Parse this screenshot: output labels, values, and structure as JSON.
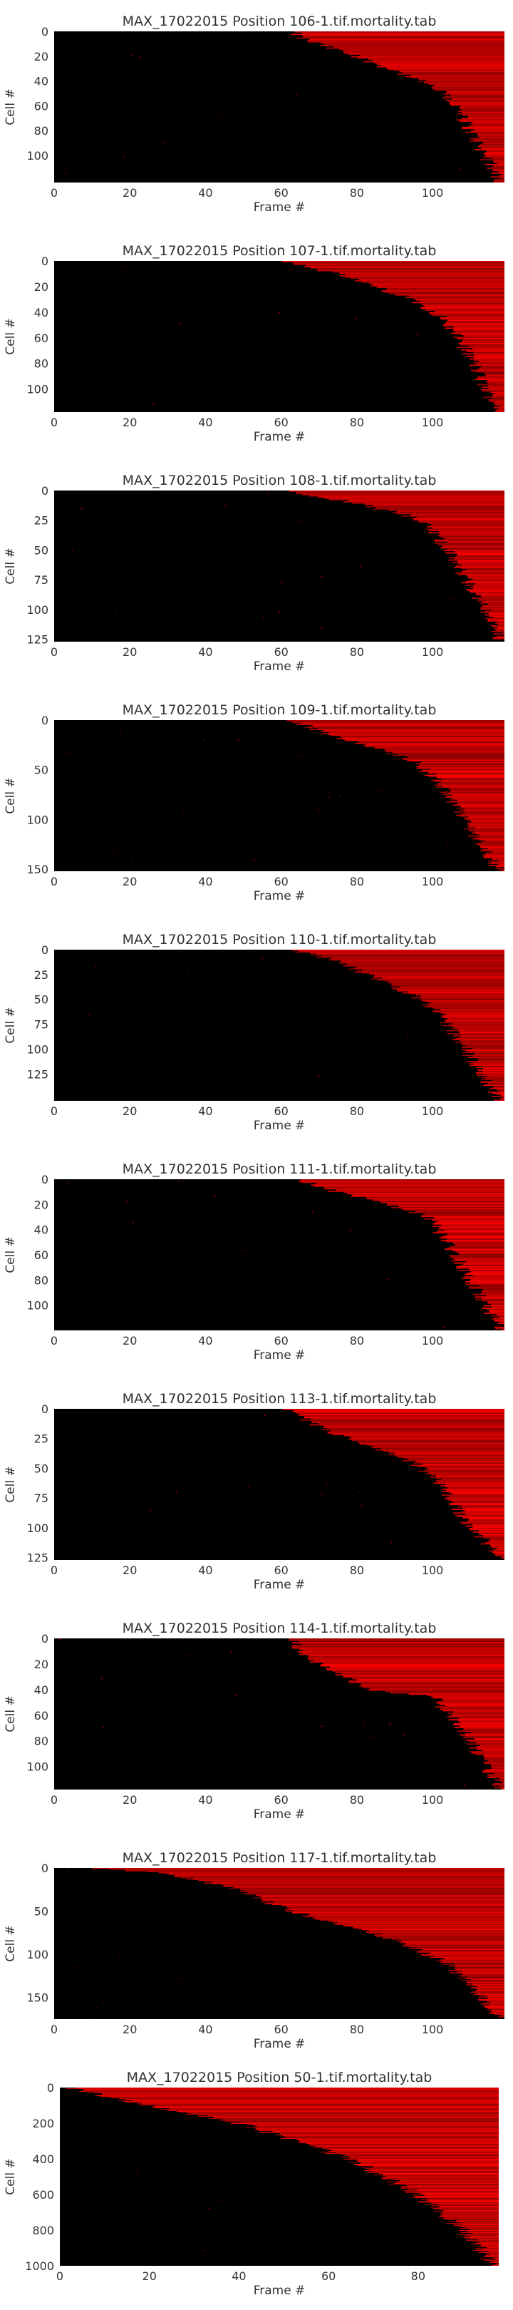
{
  "figure": {
    "background": "#ffffff",
    "plot_background": "#000000",
    "mark_color": "#ff0000",
    "text_color": "#333333"
  },
  "chart_data": [
    {
      "type": "heatmap",
      "title": "MAX_17022015 Position 106-1.tif.mortality.tab",
      "xlabel": "Frame #",
      "ylabel": "Cell #",
      "xlim": [
        0,
        119
      ],
      "ylim": [
        0,
        122
      ],
      "xticks": [
        0,
        20,
        40,
        60,
        80,
        100
      ],
      "yticks": [
        0,
        20,
        40,
        60,
        80,
        100
      ],
      "grid": false,
      "legend": "none",
      "death_profile": [
        {
          "cell": 0,
          "frame": 63
        },
        {
          "cell": 5,
          "frame": 65
        },
        {
          "cell": 10,
          "frame": 70
        },
        {
          "cell": 20,
          "frame": 80
        },
        {
          "cell": 30,
          "frame": 89
        },
        {
          "cell": 40,
          "frame": 97
        },
        {
          "cell": 50,
          "frame": 103
        },
        {
          "cell": 60,
          "frame": 106
        },
        {
          "cell": 80,
          "frame": 110
        },
        {
          "cell": 100,
          "frame": 114
        },
        {
          "cell": 122,
          "frame": 118
        }
      ]
    },
    {
      "type": "heatmap",
      "title": "MAX_17022015 Position 107-1.tif.mortality.tab",
      "xlabel": "Frame #",
      "ylabel": "Cell #",
      "xlim": [
        0,
        119
      ],
      "ylim": [
        0,
        118
      ],
      "xticks": [
        0,
        20,
        40,
        60,
        80,
        100
      ],
      "yticks": [
        0,
        20,
        40,
        60,
        80,
        100
      ],
      "grid": false,
      "legend": "none",
      "death_profile": [
        {
          "cell": 0,
          "frame": 62
        },
        {
          "cell": 10,
          "frame": 75
        },
        {
          "cell": 20,
          "frame": 85
        },
        {
          "cell": 30,
          "frame": 95
        },
        {
          "cell": 40,
          "frame": 101
        },
        {
          "cell": 60,
          "frame": 107
        },
        {
          "cell": 80,
          "frame": 111
        },
        {
          "cell": 100,
          "frame": 114
        },
        {
          "cell": 118,
          "frame": 118
        }
      ]
    },
    {
      "type": "heatmap",
      "title": "MAX_17022015 Position 108-1.tif.mortality.tab",
      "xlabel": "Frame #",
      "ylabel": "Cell #",
      "xlim": [
        0,
        119
      ],
      "ylim": [
        0,
        127
      ],
      "xticks": [
        0,
        20,
        40,
        60,
        80,
        100
      ],
      "yticks": [
        0,
        25,
        50,
        75,
        100,
        125
      ],
      "grid": false,
      "legend": "none",
      "death_profile": [
        {
          "cell": 0,
          "frame": 62
        },
        {
          "cell": 10,
          "frame": 80
        },
        {
          "cell": 20,
          "frame": 93
        },
        {
          "cell": 30,
          "frame": 99
        },
        {
          "cell": 50,
          "frame": 104
        },
        {
          "cell": 75,
          "frame": 109
        },
        {
          "cell": 100,
          "frame": 114
        },
        {
          "cell": 127,
          "frame": 118
        }
      ]
    },
    {
      "type": "heatmap",
      "title": "MAX_17022015 Position 109-1.tif.mortality.tab",
      "xlabel": "Frame #",
      "ylabel": "Cell #",
      "xlim": [
        0,
        119
      ],
      "ylim": [
        0,
        152
      ],
      "xticks": [
        0,
        20,
        40,
        60,
        80,
        100
      ],
      "yticks": [
        0,
        50,
        100,
        150
      ],
      "grid": false,
      "legend": "none",
      "death_profile": [
        {
          "cell": 0,
          "frame": 63
        },
        {
          "cell": 10,
          "frame": 70
        },
        {
          "cell": 25,
          "frame": 82
        },
        {
          "cell": 40,
          "frame": 95
        },
        {
          "cell": 60,
          "frame": 101
        },
        {
          "cell": 90,
          "frame": 107
        },
        {
          "cell": 120,
          "frame": 112
        },
        {
          "cell": 152,
          "frame": 118
        }
      ]
    },
    {
      "type": "heatmap",
      "title": "MAX_17022015 Position 110-1.tif.mortality.tab",
      "xlabel": "Frame #",
      "ylabel": "Cell #",
      "xlim": [
        0,
        119
      ],
      "ylim": [
        0,
        152
      ],
      "xticks": [
        0,
        20,
        40,
        60,
        80,
        100
      ],
      "yticks": [
        0,
        25,
        50,
        75,
        100,
        125
      ],
      "grid": false,
      "legend": "none",
      "death_profile": [
        {
          "cell": 0,
          "frame": 63
        },
        {
          "cell": 10,
          "frame": 74
        },
        {
          "cell": 25,
          "frame": 83
        },
        {
          "cell": 45,
          "frame": 95
        },
        {
          "cell": 60,
          "frame": 101
        },
        {
          "cell": 90,
          "frame": 107
        },
        {
          "cell": 120,
          "frame": 112
        },
        {
          "cell": 152,
          "frame": 118
        }
      ]
    },
    {
      "type": "heatmap",
      "title": "MAX_17022015 Position 111-1.tif.mortality.tab",
      "xlabel": "Frame #",
      "ylabel": "Cell #",
      "xlim": [
        0,
        119
      ],
      "ylim": [
        0,
        120
      ],
      "xticks": [
        0,
        20,
        40,
        60,
        80,
        100
      ],
      "yticks": [
        0,
        20,
        40,
        60,
        80,
        100
      ],
      "grid": false,
      "legend": "none",
      "death_profile": [
        {
          "cell": 0,
          "frame": 64
        },
        {
          "cell": 10,
          "frame": 75
        },
        {
          "cell": 20,
          "frame": 89
        },
        {
          "cell": 30,
          "frame": 99
        },
        {
          "cell": 50,
          "frame": 104
        },
        {
          "cell": 80,
          "frame": 110
        },
        {
          "cell": 120,
          "frame": 118
        }
      ]
    },
    {
      "type": "heatmap",
      "title": "MAX_17022015 Position 113-1.tif.mortality.tab",
      "xlabel": "Frame #",
      "ylabel": "Cell #",
      "xlim": [
        0,
        119
      ],
      "ylim": [
        0,
        127
      ],
      "xticks": [
        0,
        20,
        40,
        60,
        80,
        100
      ],
      "yticks": [
        0,
        25,
        50,
        75,
        100,
        125
      ],
      "grid": false,
      "legend": "none",
      "death_profile": [
        {
          "cell": 0,
          "frame": 61
        },
        {
          "cell": 15,
          "frame": 70
        },
        {
          "cell": 30,
          "frame": 82
        },
        {
          "cell": 45,
          "frame": 95
        },
        {
          "cell": 60,
          "frame": 101
        },
        {
          "cell": 90,
          "frame": 108
        },
        {
          "cell": 127,
          "frame": 118
        }
      ]
    },
    {
      "type": "heatmap",
      "title": "MAX_17022015 Position 114-1.tif.mortality.tab",
      "xlabel": "Frame #",
      "ylabel": "Cell #",
      "xlim": [
        0,
        119
      ],
      "ylim": [
        0,
        118
      ],
      "xticks": [
        0,
        20,
        40,
        60,
        80,
        100
      ],
      "yticks": [
        0,
        20,
        40,
        60,
        80,
        100
      ],
      "grid": false,
      "legend": "none",
      "death_profile": [
        {
          "cell": 0,
          "frame": 62
        },
        {
          "cell": 20,
          "frame": 70
        },
        {
          "cell": 40,
          "frame": 84
        },
        {
          "cell": 45,
          "frame": 100
        },
        {
          "cell": 70,
          "frame": 108
        },
        {
          "cell": 100,
          "frame": 114
        },
        {
          "cell": 118,
          "frame": 118
        }
      ]
    },
    {
      "type": "heatmap",
      "title": "MAX_17022015 Position 117-1.tif.mortality.tab",
      "xlabel": "Frame #",
      "ylabel": "Cell #",
      "xlim": [
        0,
        119
      ],
      "ylim": [
        0,
        175
      ],
      "xticks": [
        0,
        20,
        40,
        60,
        80,
        100
      ],
      "yticks": [
        0,
        50,
        100,
        150
      ],
      "grid": false,
      "legend": "none",
      "death_profile": [
        {
          "cell": 0,
          "frame": 10
        },
        {
          "cell": 5,
          "frame": 27
        },
        {
          "cell": 20,
          "frame": 45
        },
        {
          "cell": 50,
          "frame": 63
        },
        {
          "cell": 80,
          "frame": 88
        },
        {
          "cell": 110,
          "frame": 104
        },
        {
          "cell": 140,
          "frame": 111
        },
        {
          "cell": 175,
          "frame": 118
        }
      ]
    },
    {
      "type": "heatmap",
      "title": "MAX_17022015 Position 50-1.tif.mortality.tab",
      "xlabel": "Frame #",
      "ylabel": "Cell #",
      "xlim": [
        0,
        98
      ],
      "ylim": [
        0,
        1000
      ],
      "xticks": [
        0,
        20,
        40,
        60,
        80
      ],
      "yticks": [
        0,
        200,
        400,
        600,
        800,
        1000
      ],
      "grid": false,
      "legend": "none",
      "death_profile": [
        {
          "cell": 0,
          "frame": 2
        },
        {
          "cell": 100,
          "frame": 20
        },
        {
          "cell": 200,
          "frame": 40
        },
        {
          "cell": 300,
          "frame": 53
        },
        {
          "cell": 400,
          "frame": 65
        },
        {
          "cell": 600,
          "frame": 80
        },
        {
          "cell": 800,
          "frame": 90
        },
        {
          "cell": 1000,
          "frame": 97
        }
      ]
    }
  ]
}
